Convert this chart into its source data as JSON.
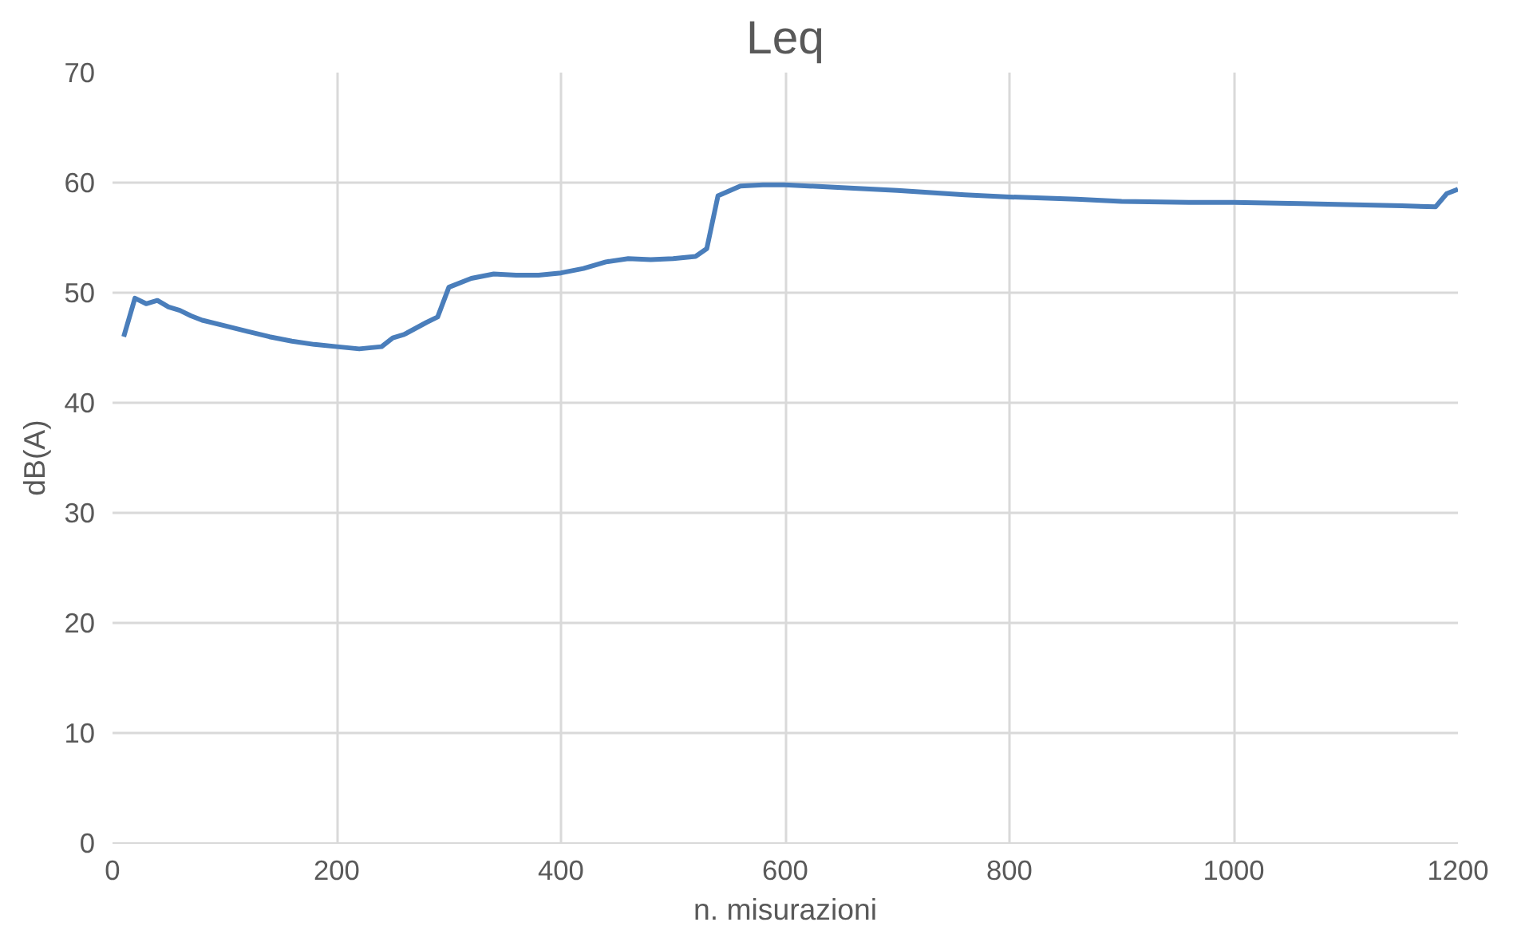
{
  "chart_data": {
    "type": "line",
    "title": "Leq",
    "xlabel": "n. misurazioni",
    "ylabel": "dB(A)",
    "xlim": [
      0,
      1200
    ],
    "xticks": [
      0,
      200,
      400,
      600,
      800,
      1000,
      1200
    ],
    "ylim": [
      0,
      70
    ],
    "yticks": [
      0,
      10,
      20,
      30,
      40,
      50,
      60,
      70
    ],
    "grid": true,
    "series": [
      {
        "color": "#4a7ebb",
        "x": [
          10,
          20,
          30,
          40,
          50,
          60,
          70,
          80,
          100,
          120,
          140,
          160,
          180,
          200,
          220,
          240,
          250,
          260,
          280,
          290,
          300,
          320,
          340,
          360,
          380,
          400,
          420,
          440,
          460,
          480,
          500,
          520,
          530,
          540,
          560,
          580,
          600,
          640,
          700,
          760,
          800,
          860,
          900,
          960,
          1000,
          1060,
          1100,
          1150,
          1180,
          1190,
          1200
        ],
        "values": [
          46,
          49.5,
          49,
          49.3,
          48.7,
          48.4,
          47.9,
          47.5,
          47,
          46.5,
          46,
          45.6,
          45.3,
          45.1,
          44.9,
          45.1,
          45.9,
          46.2,
          47.3,
          47.8,
          50.5,
          51.3,
          51.7,
          51.6,
          51.6,
          51.8,
          52.2,
          52.8,
          53.1,
          53,
          53.1,
          53.3,
          54,
          58.8,
          59.7,
          59.8,
          59.8,
          59.6,
          59.3,
          58.9,
          58.7,
          58.5,
          58.3,
          58.2,
          58.2,
          58.1,
          58,
          57.9,
          57.8,
          59,
          59.4
        ]
      }
    ]
  }
}
